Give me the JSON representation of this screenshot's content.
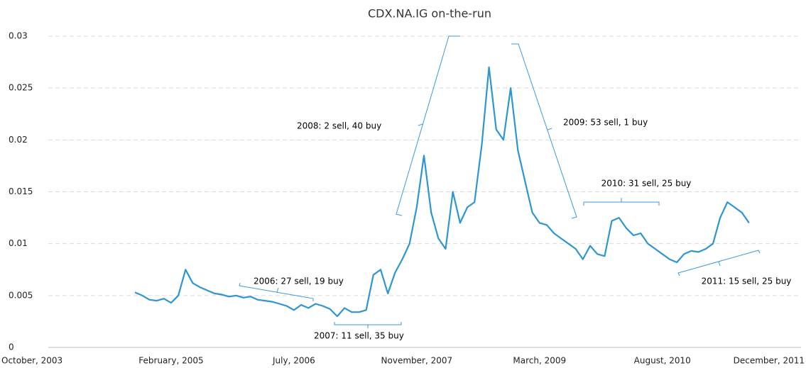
{
  "chart_data": {
    "type": "line",
    "title": "CDX.NA.IG on-the-run",
    "x": [
      "2004-10",
      "2004-11",
      "2004-12",
      "2005-01",
      "2005-02",
      "2005-03",
      "2005-04",
      "2005-05",
      "2005-06",
      "2005-07",
      "2005-08",
      "2005-09",
      "2005-10",
      "2005-11",
      "2005-12",
      "2006-01",
      "2006-02",
      "2006-03",
      "2006-04",
      "2006-05",
      "2006-06",
      "2006-07",
      "2006-08",
      "2006-09",
      "2006-10",
      "2006-11",
      "2006-12",
      "2007-01",
      "2007-02",
      "2007-03",
      "2007-04",
      "2007-05",
      "2007-06",
      "2007-07",
      "2007-08",
      "2007-09",
      "2007-10",
      "2007-11",
      "2007-12",
      "2008-01",
      "2008-02",
      "2008-03",
      "2008-04",
      "2008-05",
      "2008-06",
      "2008-07",
      "2008-08",
      "2008-09",
      "2008-10",
      "2008-11",
      "2008-12",
      "2009-01",
      "2009-02",
      "2009-03",
      "2009-04",
      "2009-05",
      "2009-06",
      "2009-07",
      "2009-08",
      "2009-09",
      "2009-10",
      "2009-11",
      "2009-12",
      "2010-01",
      "2010-02",
      "2010-03",
      "2010-04",
      "2010-05",
      "2010-06",
      "2010-07",
      "2010-08",
      "2010-09",
      "2010-10",
      "2010-11",
      "2010-12",
      "2011-01",
      "2011-02",
      "2011-03",
      "2011-04",
      "2011-05",
      "2011-06",
      "2011-07",
      "2011-08",
      "2011-09",
      "2011-10",
      "2011-11"
    ],
    "values": [
      0.0053,
      0.005,
      0.0046,
      0.0045,
      0.0047,
      0.0043,
      0.005,
      0.0075,
      0.0062,
      0.0058,
      0.0055,
      0.0052,
      0.0051,
      0.0049,
      0.005,
      0.0048,
      0.0049,
      0.0046,
      0.0045,
      0.0044,
      0.0042,
      0.004,
      0.0036,
      0.0041,
      0.0038,
      0.0042,
      0.004,
      0.0037,
      0.003,
      0.0038,
      0.0034,
      0.0034,
      0.0036,
      0.007,
      0.0075,
      0.0052,
      0.0072,
      0.0085,
      0.01,
      0.0135,
      0.0185,
      0.013,
      0.0105,
      0.0095,
      0.015,
      0.012,
      0.0135,
      0.014,
      0.0195,
      0.027,
      0.021,
      0.02,
      0.025,
      0.019,
      0.016,
      0.013,
      0.012,
      0.0118,
      0.011,
      0.0105,
      0.01,
      0.0095,
      0.0085,
      0.0098,
      0.009,
      0.0088,
      0.0122,
      0.0125,
      0.0115,
      0.0108,
      0.011,
      0.01,
      0.0095,
      0.009,
      0.0085,
      0.0082,
      0.009,
      0.0093,
      0.0092,
      0.0095,
      0.01,
      0.0125,
      0.014,
      0.0135,
      0.013,
      0.012
    ],
    "color": "#2e95d3",
    "xlim": [
      "2003-10",
      "2011-12"
    ],
    "xticks": [
      {
        "value": "2003-10",
        "label": "October, 2003"
      },
      {
        "value": "2005-03",
        "label": "February, 2005"
      },
      {
        "value": "2006-08",
        "label": "July, 2006"
      },
      {
        "value": "2008-01",
        "label": "November, 2007"
      },
      {
        "value": "2009-06",
        "label": "March, 2009"
      },
      {
        "value": "2010-11",
        "label": "August, 2010"
      },
      {
        "value": "2012-04",
        "label": "December, 2011"
      }
    ],
    "ylim": [
      0,
      0.03
    ],
    "yticks": [
      0,
      0.005,
      0.01,
      0.015,
      0.02,
      0.025,
      0.03
    ],
    "grid": true,
    "annotations": [
      "2006: 27 sell, 19 buy",
      "2007: 11 sell, 35 buy",
      "2008: 2 sell, 40 buy",
      "2009: 53 sell, 1 buy",
      "2010: 31 sell, 25 buy",
      "2011: 15 sell, 25 buy"
    ]
  }
}
